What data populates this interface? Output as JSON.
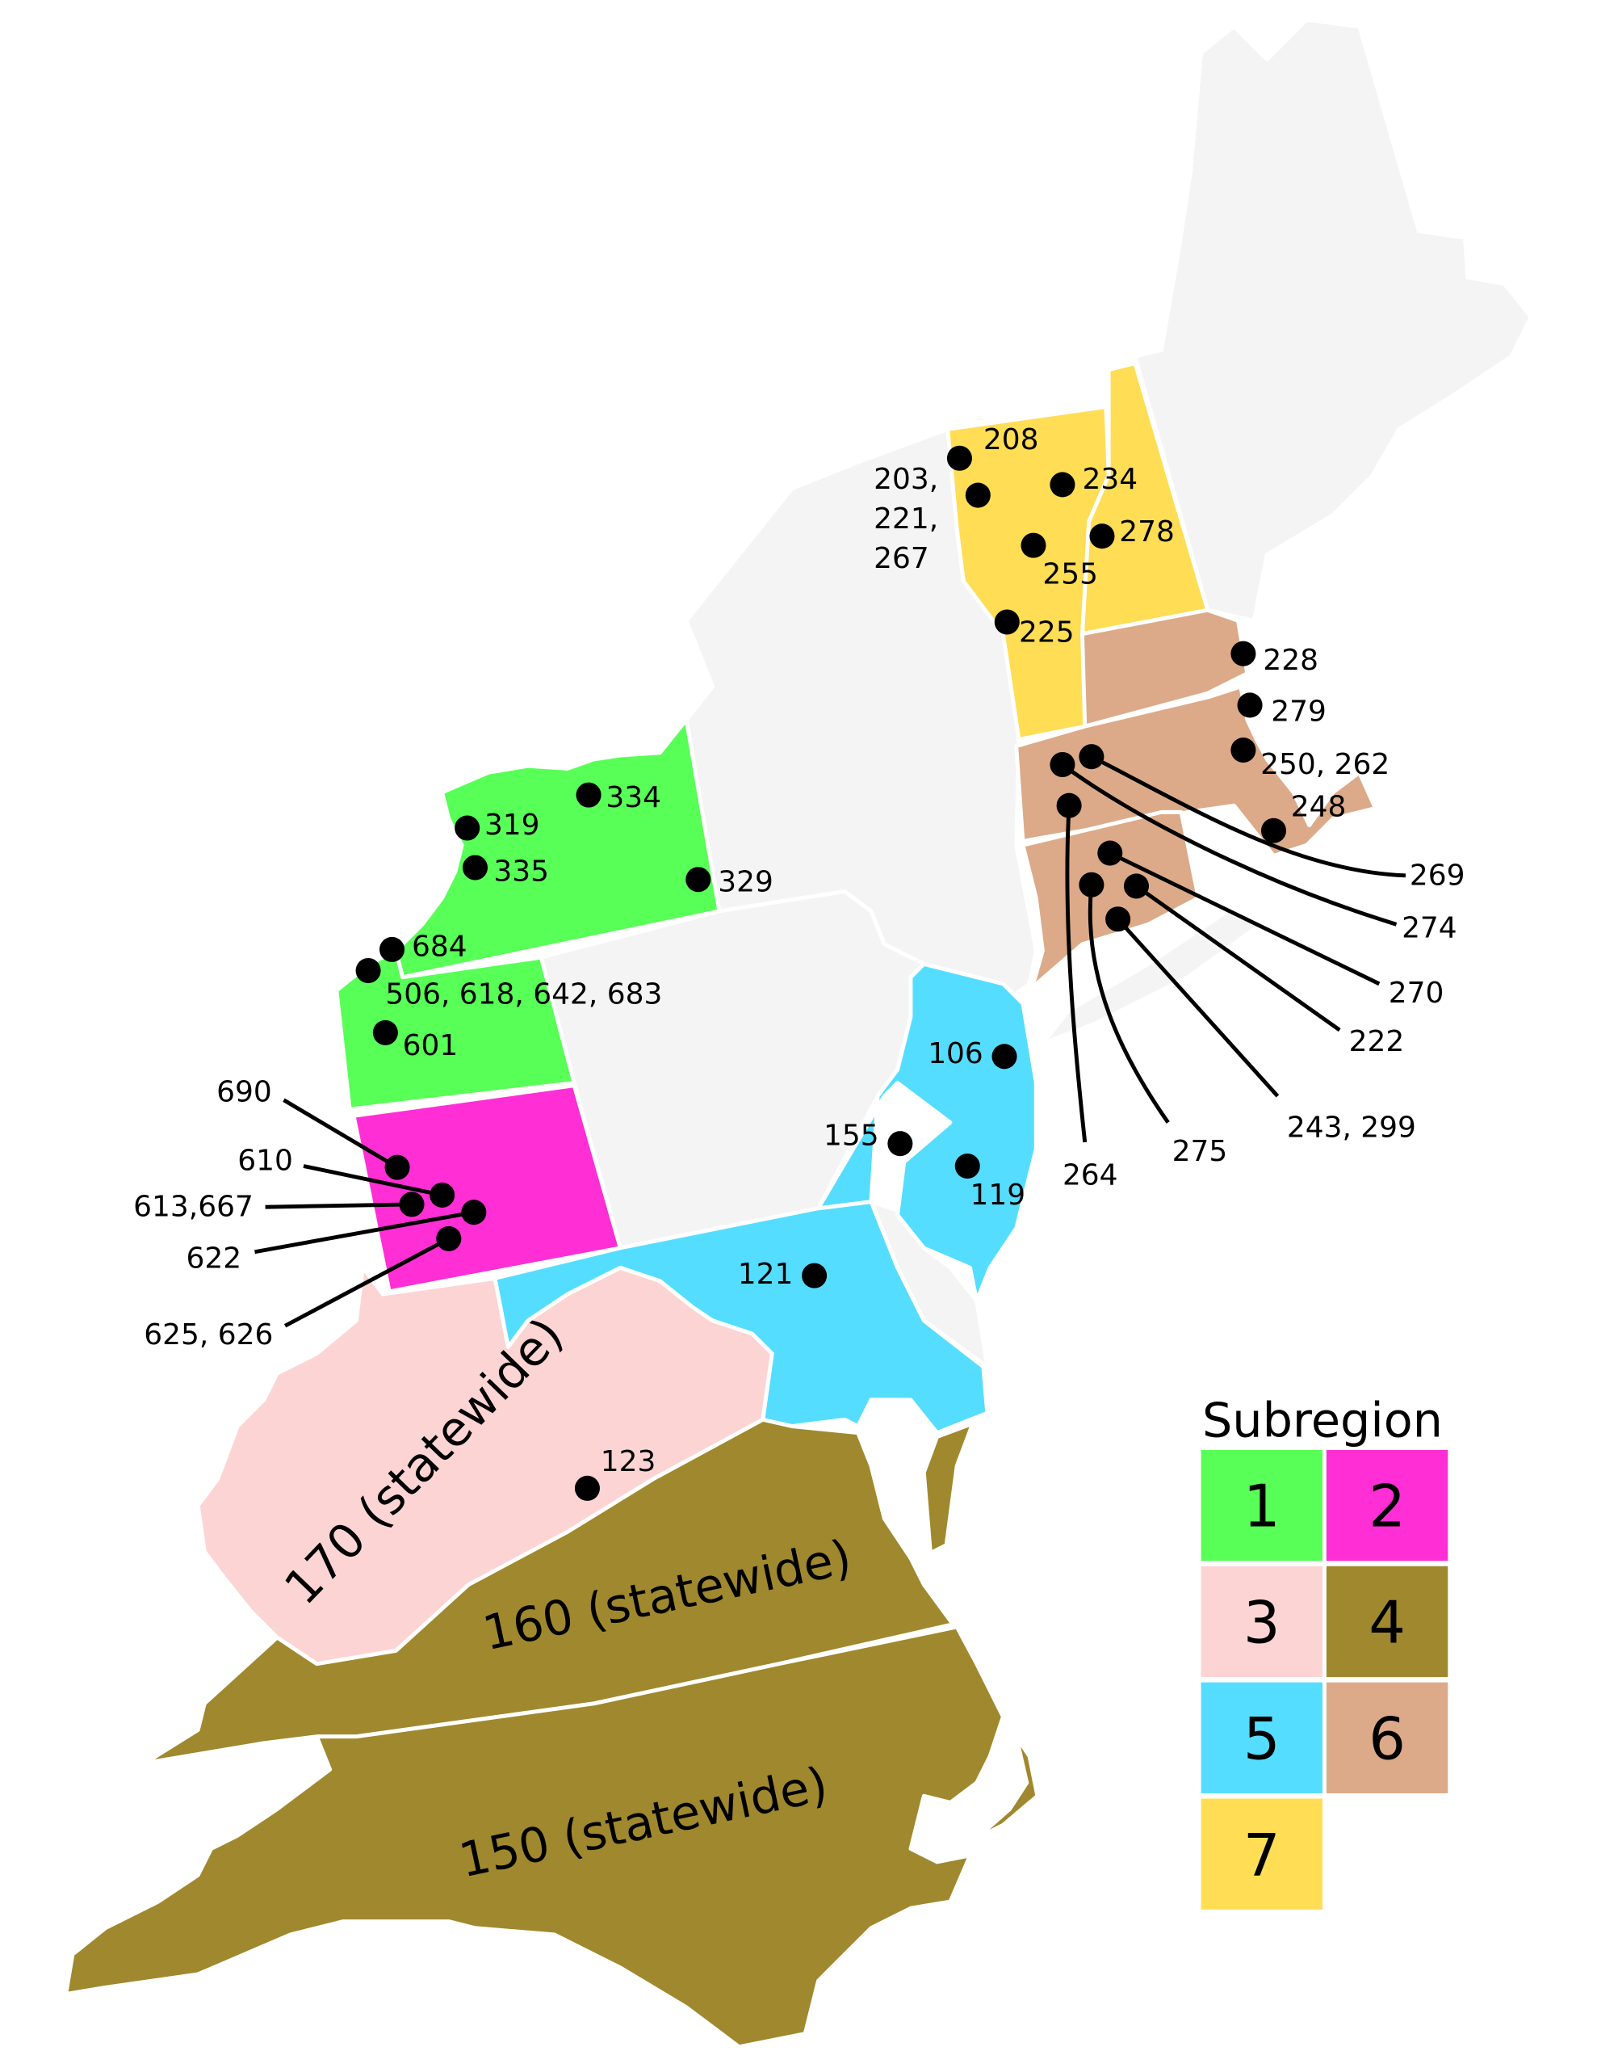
{
  "colors": {
    "subregion_1": "#57ff57",
    "subregion_2": "#ff2ed5",
    "subregion_3": "#fdd4d4",
    "subregion_4": "#a0882e",
    "subregion_5": "#55ddff",
    "subregion_6": "#dcaa88",
    "subregion_7": "#ffdd55",
    "other": "#f4f4f4"
  },
  "statewide_labels": {
    "wv": "170 (statewide)",
    "va": "160 (statewide)",
    "nc": "150 (statewide)"
  },
  "legend": {
    "title": "Subregion",
    "items": [
      {
        "label": "1",
        "color": "#57ff57"
      },
      {
        "label": "2",
        "color": "#ff2ed5"
      },
      {
        "label": "3",
        "color": "#fdd4d4"
      },
      {
        "label": "4",
        "color": "#a0882e"
      },
      {
        "label": "5",
        "color": "#55ddff"
      },
      {
        "label": "6",
        "color": "#dcaa88"
      },
      {
        "label": "7",
        "color": "#ffdd55"
      }
    ]
  },
  "sites": [
    {
      "label": "208",
      "subregion": "7"
    },
    {
      "label": "203, 221, 267",
      "subregion": "7"
    },
    {
      "label": "234",
      "subregion": "7"
    },
    {
      "label": "278",
      "subregion": "7"
    },
    {
      "label": "255",
      "subregion": "7"
    },
    {
      "label": "225",
      "subregion": "7"
    },
    {
      "label": "228",
      "subregion": "6"
    },
    {
      "label": "279",
      "subregion": "6"
    },
    {
      "label": "250, 262",
      "subregion": "6"
    },
    {
      "label": "248",
      "subregion": "6"
    },
    {
      "label": "269",
      "subregion": "6"
    },
    {
      "label": "274",
      "subregion": "6"
    },
    {
      "label": "264",
      "subregion": "6"
    },
    {
      "label": "270",
      "subregion": "6"
    },
    {
      "label": "275",
      "subregion": "6"
    },
    {
      "label": "222",
      "subregion": "6"
    },
    {
      "label": "243, 299",
      "subregion": "6"
    },
    {
      "label": "106",
      "subregion": "5"
    },
    {
      "label": "155",
      "subregion": "5"
    },
    {
      "label": "119",
      "subregion": "5"
    },
    {
      "label": "121",
      "subregion": "5"
    },
    {
      "label": "123",
      "subregion": "3"
    },
    {
      "label": "334",
      "subregion": "1"
    },
    {
      "label": "319",
      "subregion": "1"
    },
    {
      "label": "335",
      "subregion": "1"
    },
    {
      "label": "329",
      "subregion": "1"
    },
    {
      "label": "684",
      "subregion": "1"
    },
    {
      "label": "506, 618, 642, 683",
      "subregion": "1"
    },
    {
      "label": "601",
      "subregion": "1"
    },
    {
      "label": "690",
      "subregion": "2"
    },
    {
      "label": "610",
      "subregion": "2"
    },
    {
      "label": "613,667",
      "subregion": "2"
    },
    {
      "label": "622",
      "subregion": "2"
    },
    {
      "label": "625, 626",
      "subregion": "2"
    }
  ]
}
